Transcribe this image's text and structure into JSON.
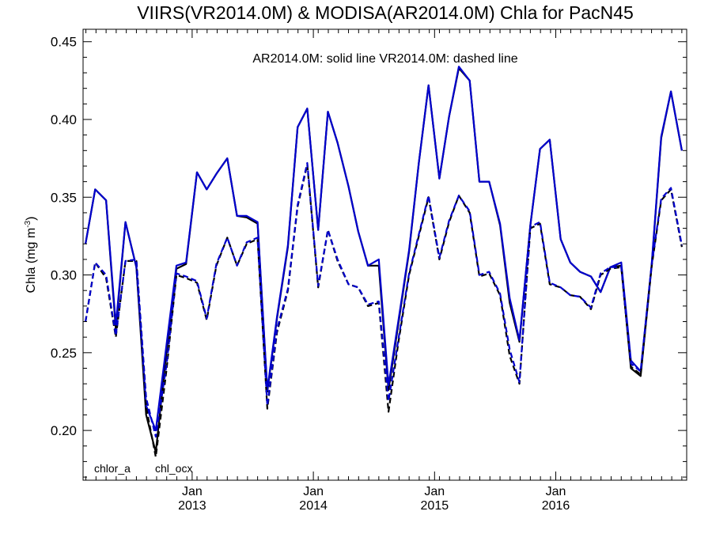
{
  "chart_data": {
    "type": "line",
    "title": "VIIRS(VR2014.0M) & MODISA(AR2014.0M)  Chla for PacN45",
    "annotation": "AR2014.0M: solid line   VR2014.0M: dashed line",
    "ylabel_main": "Chla (mg m",
    "ylabel_sup": "-3",
    "ylabel_end": ")",
    "ylim": [
      0.168,
      0.458
    ],
    "yticks": [
      0.2,
      0.25,
      0.3,
      0.35,
      0.4,
      0.45
    ],
    "ytick_labels": [
      "0.20",
      "0.25",
      "0.30",
      "0.35",
      "0.40",
      "0.45"
    ],
    "xlim": [
      2012.1,
      2017.08
    ],
    "xticks": [
      2013.0,
      2014.0,
      2015.0,
      2016.0
    ],
    "xtick_labels": [
      {
        "month": "Jan",
        "year": "2013"
      },
      {
        "month": "Jan",
        "year": "2014"
      },
      {
        "month": "Jan",
        "year": "2015"
      },
      {
        "month": "Jan",
        "year": "2016"
      }
    ],
    "grid": false,
    "legend_position": "bottom-left",
    "legend": [
      {
        "label": "chlor_a",
        "color": "#000000"
      },
      {
        "label": "chl_ocx",
        "color": "#0000cc"
      }
    ],
    "x": [
      2012.12,
      2012.2,
      2012.29,
      2012.37,
      2012.45,
      2012.54,
      2012.62,
      2012.7,
      2012.79,
      2012.87,
      2012.95,
      2013.04,
      2013.12,
      2013.2,
      2013.29,
      2013.37,
      2013.45,
      2013.54,
      2013.62,
      2013.7,
      2013.79,
      2013.87,
      2013.95,
      2014.04,
      2014.12,
      2014.2,
      2014.29,
      2014.37,
      2014.45,
      2014.54,
      2014.62,
      2014.7,
      2014.79,
      2014.87,
      2014.95,
      2015.04,
      2015.12,
      2015.2,
      2015.29,
      2015.37,
      2015.45,
      2015.54,
      2015.62,
      2015.7,
      2015.79,
      2015.87,
      2015.95,
      2016.04,
      2016.12,
      2016.2,
      2016.29,
      2016.37,
      2016.45,
      2016.54,
      2016.62,
      2016.7,
      2016.79,
      2016.87,
      2016.95,
      2017.04
    ],
    "series": [
      {
        "name": "chlor_a AR2014.0M",
        "color": "#000000",
        "dashed": false,
        "values": [
          0.32,
          0.355,
          0.348,
          0.265,
          0.334,
          0.305,
          0.21,
          0.186,
          0.252,
          0.304,
          0.307,
          0.366,
          0.355,
          0.365,
          0.375,
          0.338,
          0.337,
          0.333,
          0.225,
          0.272,
          0.318,
          0.395,
          0.407,
          0.329,
          0.405,
          0.385,
          0.357,
          0.328,
          0.306,
          0.306,
          0.226,
          0.268,
          0.315,
          0.372,
          0.422,
          0.362,
          0.402,
          0.433,
          0.425,
          0.36,
          0.36,
          0.332,
          0.282,
          0.257,
          0.332,
          0.381,
          0.387,
          0.323,
          0.308,
          0.302,
          0.299,
          0.289,
          0.305,
          0.306,
          0.24,
          0.235,
          0.305,
          0.388,
          0.418,
          0.38
        ]
      },
      {
        "name": "chl_ocx AR2014.0M",
        "color": "#0000cc",
        "dashed": false,
        "values": [
          0.32,
          0.355,
          0.348,
          0.268,
          0.334,
          0.305,
          0.216,
          0.2,
          0.256,
          0.306,
          0.308,
          0.366,
          0.355,
          0.365,
          0.375,
          0.338,
          0.338,
          0.334,
          0.226,
          0.273,
          0.319,
          0.395,
          0.407,
          0.329,
          0.405,
          0.385,
          0.357,
          0.328,
          0.306,
          0.31,
          0.229,
          0.27,
          0.316,
          0.372,
          0.422,
          0.362,
          0.402,
          0.434,
          0.425,
          0.36,
          0.36,
          0.333,
          0.285,
          0.258,
          0.332,
          0.381,
          0.387,
          0.323,
          0.308,
          0.302,
          0.299,
          0.289,
          0.305,
          0.308,
          0.245,
          0.238,
          0.306,
          0.389,
          0.418,
          0.38
        ]
      },
      {
        "name": "chlor_a VR2014.0M",
        "color": "#000000",
        "dashed": true,
        "values": [
          0.27,
          0.308,
          0.298,
          0.26,
          0.309,
          0.309,
          0.215,
          0.183,
          0.24,
          0.3,
          0.298,
          0.295,
          0.271,
          0.306,
          0.324,
          0.306,
          0.32,
          0.323,
          0.214,
          0.263,
          0.29,
          0.344,
          0.371,
          0.292,
          0.329,
          0.309,
          0.294,
          0.292,
          0.28,
          0.282,
          0.212,
          0.256,
          0.3,
          0.325,
          0.35,
          0.31,
          0.334,
          0.351,
          0.34,
          0.299,
          0.301,
          0.287,
          0.248,
          0.23,
          0.33,
          0.333,
          0.294,
          0.292,
          0.287,
          0.286,
          0.278,
          0.3,
          0.304,
          0.305,
          0.241,
          0.236,
          0.305,
          0.348,
          0.355,
          0.318
        ]
      },
      {
        "name": "chl_ocx VR2014.0M",
        "color": "#0000cc",
        "dashed": true,
        "values": [
          0.27,
          0.308,
          0.3,
          0.261,
          0.309,
          0.31,
          0.221,
          0.196,
          0.243,
          0.301,
          0.299,
          0.296,
          0.272,
          0.307,
          0.324,
          0.306,
          0.321,
          0.324,
          0.216,
          0.265,
          0.291,
          0.345,
          0.372,
          0.293,
          0.329,
          0.31,
          0.294,
          0.292,
          0.281,
          0.283,
          0.219,
          0.258,
          0.301,
          0.326,
          0.351,
          0.311,
          0.335,
          0.351,
          0.341,
          0.3,
          0.302,
          0.288,
          0.252,
          0.231,
          0.331,
          0.334,
          0.295,
          0.292,
          0.287,
          0.286,
          0.279,
          0.301,
          0.305,
          0.305,
          0.243,
          0.238,
          0.306,
          0.349,
          0.356,
          0.319
        ]
      }
    ]
  }
}
